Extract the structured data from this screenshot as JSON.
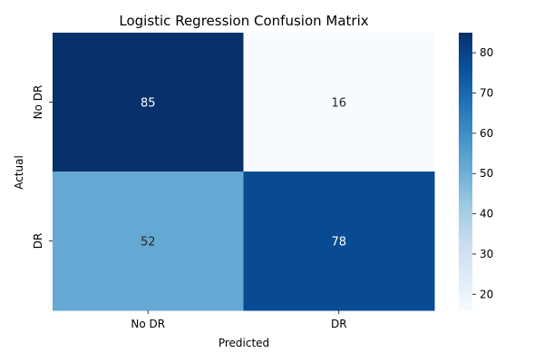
{
  "chart_data": {
    "type": "heatmap",
    "title": "Logistic Regression Confusion Matrix",
    "xlabel": "Predicted",
    "ylabel": "Actual",
    "x_categories": [
      "No DR",
      "DR"
    ],
    "y_categories": [
      "No DR",
      "DR"
    ],
    "values": [
      [
        85,
        16
      ],
      [
        52,
        78
      ]
    ],
    "colormap": "Blues",
    "colorbar": {
      "range": [
        16,
        85
      ],
      "ticks": [
        20,
        30,
        40,
        50,
        60,
        70,
        80
      ]
    }
  }
}
